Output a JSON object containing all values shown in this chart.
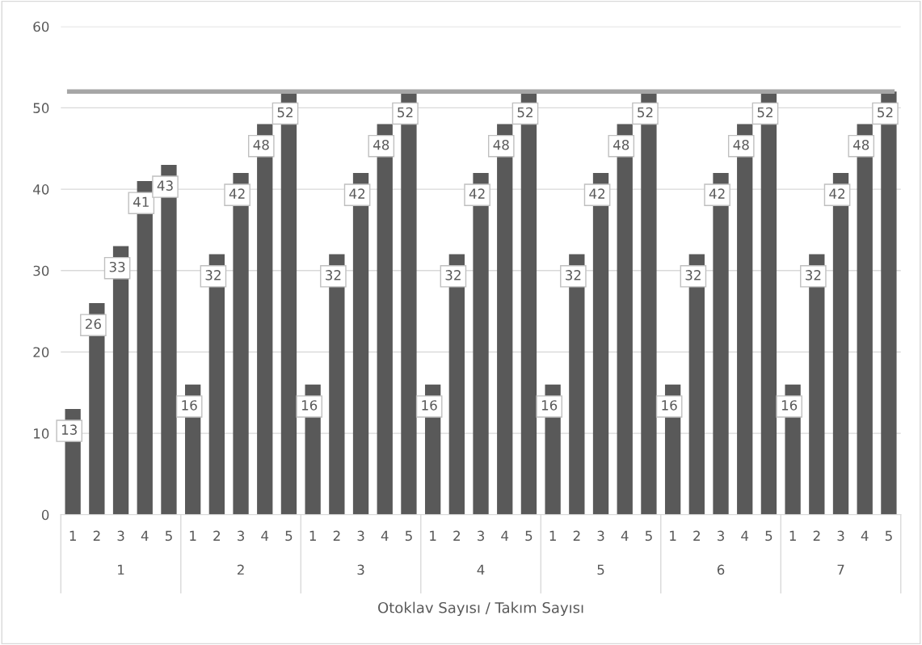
{
  "chart_data": {
    "type": "bar",
    "xlabel": "Otoklav Sayısı / Takım Sayısı",
    "categories": [
      "1",
      "2",
      "3",
      "4",
      "5",
      "1",
      "2",
      "3",
      "4",
      "5",
      "1",
      "2",
      "3",
      "4",
      "5",
      "1",
      "2",
      "3",
      "4",
      "5",
      "1",
      "2",
      "3",
      "4",
      "5",
      "1",
      "2",
      "3",
      "4",
      "5",
      "1",
      "2",
      "3",
      "4",
      "5"
    ],
    "values": [
      13,
      26,
      33,
      41,
      43,
      16,
      32,
      42,
      48,
      52,
      16,
      32,
      42,
      48,
      52,
      16,
      32,
      42,
      48,
      52,
      16,
      32,
      42,
      48,
      52,
      16,
      32,
      42,
      48,
      52,
      16,
      32,
      42,
      48,
      52
    ],
    "color": "#595959",
    "annotations": [
      "1",
      "2",
      "3",
      "4",
      "5",
      "6",
      "7"
    ],
    "ref_lines": [
      {
        "axis": "y",
        "value": 52,
        "color": "#a6a6a6"
      }
    ],
    "ylim": [
      0,
      60
    ],
    "yticks": [
      0,
      10,
      20,
      30,
      40,
      50,
      60
    ],
    "grid": "y",
    "data_labels": true
  }
}
